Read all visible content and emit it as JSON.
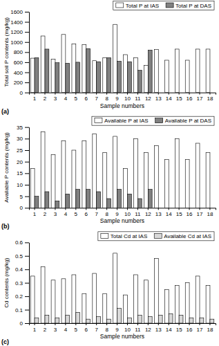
{
  "chart_data": [
    {
      "type": "bar",
      "annotations": [
        "(a)"
      ],
      "x_label": "Sample numbers",
      "y_label": "Total soil P contents (mg/kg)",
      "categories": [
        "1",
        "2",
        "3",
        "4",
        "5",
        "6",
        "7",
        "8",
        "9",
        "10",
        "11",
        "12",
        "13",
        "14",
        "15",
        "16",
        "17",
        "18"
      ],
      "series": [
        {
          "name": "Total P at IAS",
          "color": "#ffffff",
          "values": [
            680,
            1120,
            660,
            1150,
            960,
            950,
            630,
            690,
            1350,
            750,
            690,
            540,
            850,
            640,
            860,
            640,
            860,
            860
          ]
        },
        {
          "name": "Total P at DAS",
          "color": "#808080",
          "values": [
            690,
            860,
            590,
            580,
            600,
            870,
            610,
            690,
            620,
            610,
            440,
            840,
            null,
            null,
            null,
            null,
            null,
            null
          ]
        }
      ],
      "ylim": [
        0,
        1600
      ],
      "yticks": [
        0,
        200,
        400,
        600,
        800,
        1000,
        1200,
        1400,
        1600
      ],
      "grid": false,
      "legend": "top"
    },
    {
      "type": "bar",
      "annotations": [
        "(b)"
      ],
      "x_label": "Sample numbers",
      "y_label": "Available P contents (mg/kg)",
      "categories": [
        "1",
        "2",
        "3",
        "4",
        "5",
        "6",
        "7",
        "8",
        "9",
        "10",
        "11",
        "12",
        "13",
        "14",
        "15",
        "16",
        "17",
        "18"
      ],
      "series": [
        {
          "name": "Available P at IAS",
          "color": "#ffffff",
          "values": [
            17,
            33,
            23,
            29,
            25,
            29,
            32,
            24,
            31,
            17,
            30,
            24,
            27,
            21,
            30,
            21,
            28,
            24
          ]
        },
        {
          "name": "Available P at DAS",
          "color": "#808080",
          "values": [
            5,
            7,
            3,
            6,
            8,
            8,
            7,
            4,
            8,
            6,
            4,
            8,
            null,
            null,
            null,
            null,
            null,
            null
          ]
        }
      ],
      "ylim": [
        0,
        35
      ],
      "yticks": [
        0,
        5,
        10,
        15,
        20,
        25,
        30,
        35
      ],
      "grid": false,
      "legend": "top"
    },
    {
      "type": "bar",
      "annotations": [
        "(c)"
      ],
      "x_label": "Sample numbers",
      "y_label": "Cd contents (mg/kg)",
      "categories": [
        "1",
        "2",
        "3",
        "4",
        "5",
        "6",
        "7",
        "8",
        "9",
        "10",
        "11",
        "12",
        "13",
        "14",
        "15",
        "16",
        "17",
        "18"
      ],
      "series": [
        {
          "name": "Total Cd at IAS",
          "color": "#ffffff",
          "values": [
            0.35,
            0.42,
            0.32,
            0.33,
            0.36,
            0.22,
            0.37,
            0.22,
            0.52,
            0.21,
            0.36,
            0.32,
            0.48,
            0.25,
            0.28,
            0.3,
            0.35,
            0.28
          ]
        },
        {
          "name": "Available Cd at IAS",
          "color": "#d9d9d9",
          "values": [
            0.04,
            0.06,
            0.04,
            0.06,
            0.08,
            0.03,
            0.05,
            0.03,
            0.11,
            0.04,
            0.06,
            0.05,
            0.06,
            0.07,
            0.06,
            0.04,
            0.04,
            0.03
          ]
        }
      ],
      "ylim": [
        0,
        0.6
      ],
      "yticks": [
        0,
        0.1,
        0.2,
        0.3,
        0.4,
        0.5,
        0.6
      ],
      "grid": false,
      "legend": "top"
    }
  ]
}
